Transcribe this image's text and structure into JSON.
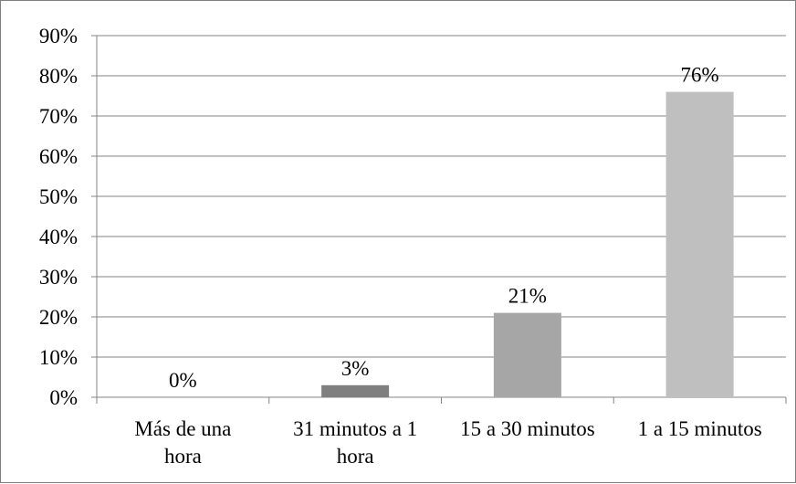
{
  "chart_data": {
    "type": "bar",
    "title": "",
    "xlabel": "",
    "ylabel": "",
    "categories": [
      [
        "Más de una",
        "hora"
      ],
      [
        "31 minutos a 1",
        "hora"
      ],
      [
        "15 a 30 minutos"
      ],
      [
        "1 a 15 minutos"
      ]
    ],
    "values": [
      0,
      3,
      21,
      76
    ],
    "data_labels": [
      "0%",
      "3%",
      "21%",
      "76%"
    ],
    "bar_colors": [
      "#7f7f7f",
      "#7f7f7f",
      "#a6a6a6",
      "#bfbfbf"
    ],
    "y_ticks": [
      "0%",
      "10%",
      "20%",
      "30%",
      "40%",
      "50%",
      "60%",
      "70%",
      "80%",
      "90%"
    ],
    "ylim": [
      0,
      90
    ],
    "grid": true,
    "legend": "none"
  }
}
